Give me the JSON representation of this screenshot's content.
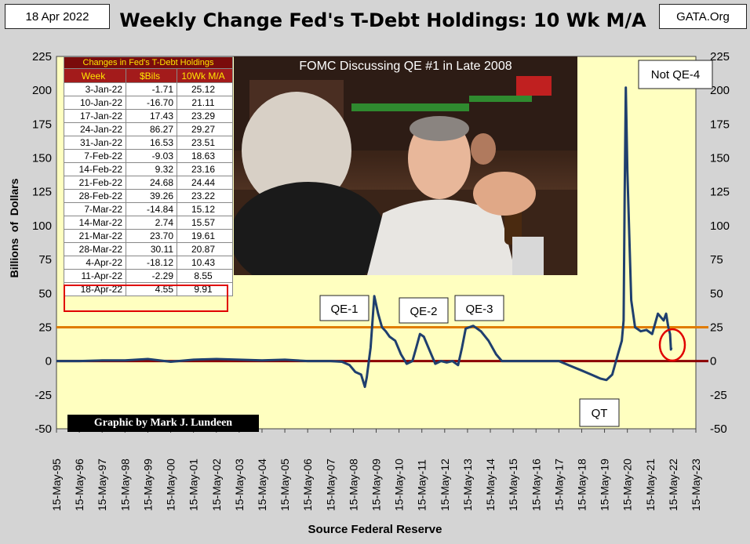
{
  "header": {
    "date": "18 Apr 2022",
    "title": "Weekly Change Fed's T-Debt Holdings: 10 Wk M/A",
    "site": "GATA.Org"
  },
  "axes": {
    "ylabel": "Billions  of  Dollars",
    "xlabel": "Source Federal Reserve"
  },
  "credit": "Graphic by Mark J. Lundeen",
  "photo": {
    "caption": "FOMC Discussing QE #1 in Late 2008"
  },
  "table": {
    "caption": "Changes in Fed's T-Debt Holdings",
    "headers": [
      "Week",
      "$Bils",
      "10Wk M/A"
    ],
    "rows": [
      [
        "3-Jan-22",
        "-1.71",
        "25.12"
      ],
      [
        "10-Jan-22",
        "-16.70",
        "21.11"
      ],
      [
        "17-Jan-22",
        "17.43",
        "23.29"
      ],
      [
        "24-Jan-22",
        "86.27",
        "29.27"
      ],
      [
        "31-Jan-22",
        "16.53",
        "23.51"
      ],
      [
        "7-Feb-22",
        "-9.03",
        "18.63"
      ],
      [
        "14-Feb-22",
        "9.32",
        "23.16"
      ],
      [
        "21-Feb-22",
        "24.68",
        "24.44"
      ],
      [
        "28-Feb-22",
        "39.26",
        "23.22"
      ],
      [
        "7-Mar-22",
        "-14.84",
        "15.12"
      ],
      [
        "14-Mar-22",
        "2.74",
        "15.57"
      ],
      [
        "21-Mar-22",
        "23.70",
        "19.61"
      ],
      [
        "28-Mar-22",
        "30.11",
        "20.87"
      ],
      [
        "4-Apr-22",
        "-18.12",
        "10.43"
      ],
      [
        "11-Apr-22",
        "-2.29",
        "8.55"
      ],
      [
        "18-Apr-22",
        "4.55",
        "9.91"
      ]
    ]
  },
  "colors": {
    "plot_bg": "#ffffc0",
    "series": "#1f3f6e",
    "ref25": "#e07b00",
    "ref0": "#8b0000",
    "highlight": "#e00000"
  },
  "chart_data": {
    "type": "line",
    "ylim": [
      -50,
      225
    ],
    "yticks": [
      -50,
      -25,
      0,
      25,
      50,
      75,
      100,
      125,
      150,
      175,
      200,
      225
    ],
    "xlim": [
      "1995-05-15",
      "2023-05-15"
    ],
    "xtick_labels": [
      "15-May-95",
      "15-May-96",
      "15-May-97",
      "15-May-98",
      "15-May-99",
      "15-May-00",
      "15-May-01",
      "15-May-02",
      "15-May-03",
      "15-May-04",
      "15-May-05",
      "15-May-06",
      "15-May-07",
      "15-May-08",
      "15-May-09",
      "15-May-10",
      "15-May-11",
      "15-May-12",
      "15-May-13",
      "15-May-14",
      "15-May-15",
      "15-May-16",
      "15-May-17",
      "15-May-18",
      "15-May-19",
      "15-May-20",
      "15-May-21",
      "15-May-22",
      "15-May-23"
    ],
    "reference_lines": [
      25,
      0
    ],
    "series": [
      {
        "x": [
          "1995-05-15",
          "1996-05-15",
          "1997-05-15",
          "1998-05-15",
          "1999-05-15",
          "2000-05-15",
          "2001-05-15",
          "2002-05-15",
          "2003-05-15",
          "2004-05-15",
          "2005-05-15",
          "2006-05-15",
          "2007-05-15",
          "2007-11-15",
          "2008-03-15",
          "2008-06-15",
          "2008-09-15",
          "2008-11-15",
          "2008-12-15",
          "2009-02-15",
          "2009-04-15",
          "2009-06-15",
          "2009-08-15",
          "2009-10-15",
          "2009-12-15",
          "2010-03-15",
          "2010-06-15",
          "2010-09-15",
          "2010-12-15",
          "2011-02-15",
          "2011-04-15",
          "2011-06-15",
          "2011-09-15",
          "2011-12-15",
          "2012-03-15",
          "2012-06-15",
          "2012-09-15",
          "2012-12-15",
          "2013-02-15",
          "2013-04-15",
          "2013-08-15",
          "2013-12-15",
          "2014-04-15",
          "2014-08-15",
          "2014-11-15",
          "2015-05-15",
          "2016-05-15",
          "2017-05-15",
          "2017-10-15",
          "2018-05-15",
          "2018-10-15",
          "2019-03-15",
          "2019-06-15",
          "2019-09-15",
          "2019-12-15",
          "2020-02-15",
          "2020-03-15",
          "2020-04-01",
          "2020-04-20",
          "2020-05-15",
          "2020-07-15",
          "2020-09-15",
          "2020-12-15",
          "2021-03-15",
          "2021-06-15",
          "2021-09-15",
          "2021-12-15",
          "2022-01-24",
          "2022-03-01",
          "2022-03-28",
          "2022-04-11",
          "2022-04-18"
        ],
        "values": [
          0,
          0,
          0.5,
          0.5,
          1.5,
          -0.5,
          1,
          1.5,
          1,
          0.5,
          1,
          0,
          0,
          -0.5,
          -3,
          -8,
          -10,
          -19,
          -12,
          10,
          48,
          35,
          25,
          22,
          18,
          15,
          5,
          -2,
          0,
          10,
          20,
          18,
          8,
          -2,
          0,
          -1,
          0,
          -3,
          10,
          24,
          26,
          22,
          15,
          5,
          0,
          0,
          0,
          0,
          -3,
          -7,
          -10,
          -13,
          -14,
          -10,
          5,
          15,
          30,
          120,
          202,
          140,
          45,
          25,
          22,
          23,
          20,
          35,
          30,
          35,
          25,
          20,
          8.55,
          9.91
        ]
      }
    ],
    "annotations": [
      "QE-1",
      "QE-2",
      "QE-3",
      "QT",
      "Not QE-4"
    ]
  }
}
